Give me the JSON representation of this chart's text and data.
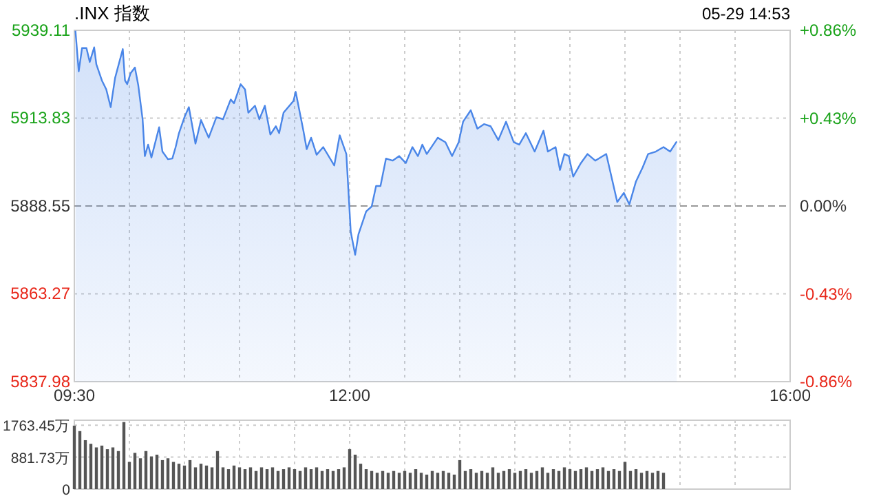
{
  "chart_data": [
    {
      "type": "area",
      "title": ".INX 指数",
      "annotations": [
        "05-29 14:53"
      ],
      "color": "#4a86e8",
      "grid": true,
      "xlim": [
        9.5,
        16
      ],
      "xticks": [
        {
          "value": 9.5,
          "label": "09:30"
        },
        {
          "value": 10,
          "label": null
        },
        {
          "value": 10.5,
          "label": null
        },
        {
          "value": 11,
          "label": null
        },
        {
          "value": 11.5,
          "label": null
        },
        {
          "value": 12,
          "label": "12:00"
        },
        {
          "value": 12.5,
          "label": null
        },
        {
          "value": 13,
          "label": null
        },
        {
          "value": 13.5,
          "label": null
        },
        {
          "value": 14,
          "label": null
        },
        {
          "value": 14.5,
          "label": null
        },
        {
          "value": 15,
          "label": null
        },
        {
          "value": 15.5,
          "label": null
        },
        {
          "value": 16,
          "label": "16:00"
        }
      ],
      "ref_lines": [
        {
          "axis": "y",
          "value": 5888.55,
          "color": "#999999",
          "line_style": "dashed"
        }
      ],
      "ylim": [
        5837.98,
        5939.11
      ],
      "yticks": [
        5837.98,
        5863.27,
        5888.55,
        5913.83,
        5939.11
      ],
      "y2lim": [
        -0.86,
        0.86
      ],
      "y2ticks": [
        {
          "value": -0.86,
          "label": "-0.86%"
        },
        {
          "value": -0.43,
          "label": "-0.43%"
        },
        {
          "value": 0,
          "label": "0.00%"
        },
        {
          "value": 0.43,
          "label": "+0.43%"
        },
        {
          "value": 0.86,
          "label": "+0.86%"
        }
      ],
      "x": [
        9.51,
        9.54,
        9.57,
        9.61,
        9.64,
        9.68,
        9.7,
        9.75,
        9.79,
        9.83,
        9.87,
        9.94,
        9.96,
        9.98,
        10.01,
        10.05,
        10.08,
        10.12,
        10.14,
        10.17,
        10.2,
        10.27,
        10.3,
        10.35,
        10.39,
        10.42,
        10.45,
        10.5,
        10.54,
        10.6,
        10.65,
        10.72,
        10.79,
        10.85,
        10.92,
        10.95,
        11.01,
        11.05,
        11.08,
        11.14,
        11.18,
        11.23,
        11.28,
        11.33,
        11.36,
        11.4,
        11.49,
        11.51,
        11.58,
        11.61,
        11.65,
        11.7,
        11.76,
        11.86,
        11.91,
        11.97,
        12.01,
        12.05,
        12.08,
        12.15,
        12.2,
        12.24,
        12.28,
        12.33,
        12.39,
        12.45,
        12.51,
        12.57,
        12.62,
        12.66,
        12.7,
        12.8,
        12.87,
        12.93,
        12.99,
        13.03,
        13.1,
        13.16,
        13.22,
        13.28,
        13.35,
        13.42,
        13.49,
        13.54,
        13.6,
        13.68,
        13.76,
        13.8,
        13.87,
        13.91,
        13.95,
        13.99,
        14.03,
        14.1,
        14.16,
        14.23,
        14.33,
        14.43,
        14.49,
        14.54,
        14.6,
        14.66,
        14.71,
        14.78,
        14.85,
        14.91,
        14.97
      ],
      "values": [
        5939.0,
        5927.3,
        5934.0,
        5934.0,
        5930.0,
        5934.2,
        5929.3,
        5924.7,
        5922.1,
        5917.0,
        5925.4,
        5933.7,
        5924.7,
        5923.6,
        5926.7,
        5928.4,
        5923.4,
        5913.5,
        5902.9,
        5906.2,
        5902.5,
        5911.2,
        5904.2,
        5902.0,
        5902.2,
        5905.5,
        5909.5,
        5914.1,
        5917.0,
        5906.5,
        5913.3,
        5908.2,
        5914.1,
        5913.5,
        5919.2,
        5918.1,
        5923.6,
        5922.1,
        5915.4,
        5917.4,
        5913.5,
        5917.4,
        5909.1,
        5911.5,
        5909.5,
        5915.4,
        5918.8,
        5921.4,
        5910.2,
        5904.9,
        5908.2,
        5903.3,
        5905.5,
        5900.2,
        5908.9,
        5903.5,
        5881.1,
        5874.5,
        5880.4,
        5887.0,
        5888.4,
        5894.3,
        5894.3,
        5902.2,
        5901.6,
        5902.9,
        5900.9,
        5905.5,
        5902.9,
        5906.2,
        5903.5,
        5908.2,
        5906.9,
        5902.9,
        5906.9,
        5912.8,
        5916.1,
        5910.8,
        5912.1,
        5911.5,
        5907.5,
        5912.8,
        5906.9,
        5906.2,
        5909.5,
        5904.2,
        5910.2,
        5904.2,
        5905.5,
        5898.9,
        5903.5,
        5902.9,
        5897.0,
        5900.9,
        5903.5,
        5901.6,
        5903.5,
        5889.7,
        5892.3,
        5889.0,
        5895.6,
        5899.6,
        5903.5,
        5904.2,
        5905.5,
        5904.2,
        5907.1
      ]
    },
    {
      "type": "bar",
      "color": "#555555",
      "grid": true,
      "tick_labels": "y",
      "xlim": [
        9.5,
        16
      ],
      "xticks": [
        {
          "value": 9.5,
          "label": null
        },
        {
          "value": 10,
          "label": null
        },
        {
          "value": 10.5,
          "label": null
        },
        {
          "value": 11,
          "label": null
        },
        {
          "value": 11.5,
          "label": null
        },
        {
          "value": 12,
          "label": null
        },
        {
          "value": 12.5,
          "label": null
        },
        {
          "value": 13,
          "label": null
        },
        {
          "value": 13.5,
          "label": null
        },
        {
          "value": 14,
          "label": null
        },
        {
          "value": 14.5,
          "label": null
        },
        {
          "value": 15,
          "label": null
        },
        {
          "value": 15.5,
          "label": null
        },
        {
          "value": 16,
          "label": null
        }
      ],
      "ylim": [
        0,
        1900
      ],
      "yticks": [
        0,
        {
          "value": 881.73,
          "label": "881.73万"
        },
        {
          "value": 1763.45,
          "label": "1763.45万"
        }
      ],
      "x": [
        9.5,
        9.55,
        9.6,
        9.65,
        9.7,
        9.75,
        9.8,
        9.85,
        9.9,
        9.95,
        10.0,
        10.05,
        10.1,
        10.15,
        10.2,
        10.25,
        10.3,
        10.35,
        10.4,
        10.45,
        10.5,
        10.55,
        10.6,
        10.65,
        10.7,
        10.75,
        10.8,
        10.85,
        10.9,
        10.95,
        11.0,
        11.05,
        11.1,
        11.15,
        11.2,
        11.25,
        11.3,
        11.35,
        11.4,
        11.45,
        11.5,
        11.55,
        11.6,
        11.65,
        11.7,
        11.75,
        11.8,
        11.85,
        11.9,
        11.95,
        12.0,
        12.05,
        12.1,
        12.15,
        12.2,
        12.25,
        12.3,
        12.35,
        12.4,
        12.45,
        12.5,
        12.55,
        12.6,
        12.65,
        12.7,
        12.75,
        12.8,
        12.85,
        12.9,
        12.95,
        13.0,
        13.05,
        13.1,
        13.15,
        13.2,
        13.25,
        13.3,
        13.35,
        13.4,
        13.45,
        13.5,
        13.55,
        13.6,
        13.65,
        13.7,
        13.75,
        13.8,
        13.85,
        13.9,
        13.95,
        14.0,
        14.05,
        14.1,
        14.15,
        14.2,
        14.25,
        14.3,
        14.35,
        14.4,
        14.45,
        14.5,
        14.55,
        14.6,
        14.65,
        14.7,
        14.75,
        14.8,
        14.85
      ],
      "values": [
        1750,
        1600,
        1350,
        1250,
        1150,
        1200,
        1100,
        1150,
        1050,
        1850,
        750,
        1000,
        850,
        1050,
        900,
        950,
        800,
        850,
        750,
        700,
        650,
        800,
        600,
        700,
        650,
        600,
        1050,
        600,
        550,
        650,
        600,
        550,
        600,
        500,
        600,
        550,
        600,
        500,
        550,
        600,
        550,
        500,
        600,
        550,
        600,
        500,
        550,
        500,
        550,
        600,
        1100,
        950,
        700,
        550,
        500,
        450,
        500,
        450,
        500,
        450,
        500,
        450,
        550,
        450,
        400,
        500,
        450,
        500,
        450,
        400,
        800,
        500,
        550,
        450,
        500,
        450,
        600,
        450,
        500,
        550,
        450,
        500,
        550,
        450,
        500,
        600,
        450,
        550,
        500,
        600,
        550,
        500,
        550,
        600,
        500,
        550,
        600,
        500,
        550,
        500,
        750,
        500,
        550,
        450,
        500,
        450,
        500,
        450
      ]
    }
  ]
}
